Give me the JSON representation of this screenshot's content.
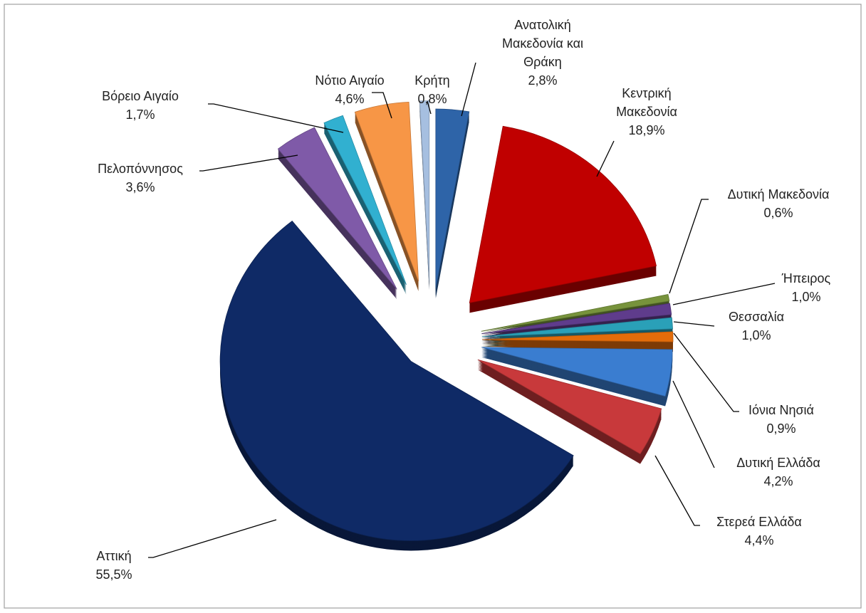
{
  "chart_data": {
    "type": "pie",
    "categories": [
      "Ανατολική Μακεδονία και Θράκη",
      "Κεντρική Μακεδονία",
      "Δυτική Μακεδονία",
      "Ήπειρος",
      "Θεσσαλία",
      "Ιόνια Νησιά",
      "Δυτική Ελλάδα",
      "Στερεά Ελλάδα",
      "Αττική",
      "Πελοπόννησος",
      "Βόρειο Αιγαίο",
      "Νότιο Αιγαίο",
      "Κρήτη"
    ],
    "values": [
      2.8,
      18.9,
      0.6,
      1.0,
      1.0,
      0.9,
      4.2,
      4.4,
      55.5,
      3.6,
      1.7,
      4.6,
      0.8
    ],
    "value_labels": [
      "2,8%",
      "18,9%",
      "0,6%",
      "1,0%",
      "1,0%",
      "0,9%",
      "4,2%",
      "4,4%",
      "55,5%",
      "3,6%",
      "1,7%",
      "4,6%",
      "0,8%"
    ],
    "colors": [
      "#2e64a8",
      "#c00000",
      "#77933c",
      "#5f3c8c",
      "#2aa0b8",
      "#e36c0a",
      "#3a7dd0",
      "#c8393b",
      "#0f2a66",
      "#7f5aa8",
      "#31b0d0",
      "#f79646",
      "#a6bfe0"
    ]
  }
}
